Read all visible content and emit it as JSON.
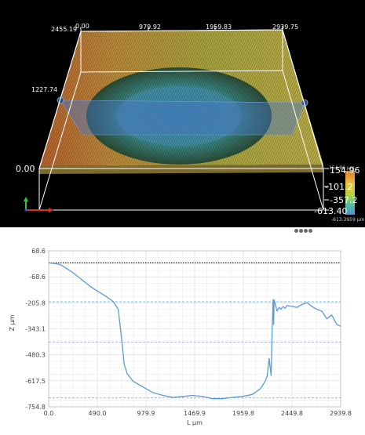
{
  "viewer3d": {
    "x_ticks": [
      "0.00",
      "979.92",
      "1959.83",
      "2939.75"
    ],
    "y_ticks": [
      "2455.19",
      "1227.74",
      "0.00"
    ],
    "z_ticks": [
      "154.96",
      "-101.2",
      "-357.2",
      "-613.40"
    ],
    "colorbar_top_label": "154.96 μm",
    "colorbar_bottom_label": "-613.3959 μm",
    "colors": {
      "background": "#000000",
      "cut_plane": "#4a78c8",
      "handle": "#2c4d7f"
    }
  },
  "splitter": {
    "dots": 4
  },
  "chart_data": {
    "type": "line",
    "xlabel": "L μm",
    "ylabel": "Z μm",
    "xlim": [
      0,
      2939.8
    ],
    "ylim": [
      -754.8,
      68.6
    ],
    "x_ticks": [
      "0.0",
      "490.0",
      "979.9",
      "1469.9",
      "1959.8",
      "2449.8",
      "2939.8"
    ],
    "y_ticks": [
      "68.6",
      "-68.6",
      "-205.8",
      "-343.1",
      "-480.3",
      "-617.5",
      "-754.8"
    ],
    "reference_lines": [
      {
        "y": 5,
        "style": "dotted",
        "color": "#222222"
      },
      {
        "y": -200,
        "style": "dashed",
        "color": "#63c0dc"
      },
      {
        "y": -413,
        "style": "dashed",
        "color": "#b5a8e8"
      },
      {
        "y": -708,
        "style": "dashed",
        "color": "#63c0dc"
      }
    ],
    "series": [
      {
        "color": "#5b9bd5",
        "x": [
          0,
          60,
          120,
          180,
          240,
          300,
          360,
          420,
          480,
          540,
          600,
          650,
          700,
          720,
          740,
          760,
          790,
          850,
          950,
          1050,
          1150,
          1250,
          1350,
          1450,
          1550,
          1650,
          1750,
          1850,
          1950,
          2050,
          2130,
          2180,
          2200,
          2220,
          2240,
          2250,
          2260,
          2265,
          2270,
          2280,
          2300,
          2320,
          2340,
          2360,
          2380,
          2400,
          2450,
          2500,
          2550,
          2600,
          2650,
          2700,
          2750,
          2800,
          2850,
          2900,
          2939
        ],
        "y": [
          5,
          2,
          -5,
          -25,
          -45,
          -70,
          -95,
          -120,
          -140,
          -160,
          -180,
          -200,
          -240,
          -330,
          -420,
          -530,
          -580,
          -620,
          -650,
          -680,
          -695,
          -705,
          -700,
          -695,
          -700,
          -712,
          -712,
          -705,
          -700,
          -690,
          -660,
          -620,
          -590,
          -500,
          -590,
          -350,
          -190,
          -320,
          -190,
          -210,
          -250,
          -230,
          -240,
          -225,
          -235,
          -220,
          -225,
          -230,
          -215,
          -205,
          -225,
          -240,
          -250,
          -290,
          -270,
          -320,
          -330
        ]
      }
    ]
  }
}
